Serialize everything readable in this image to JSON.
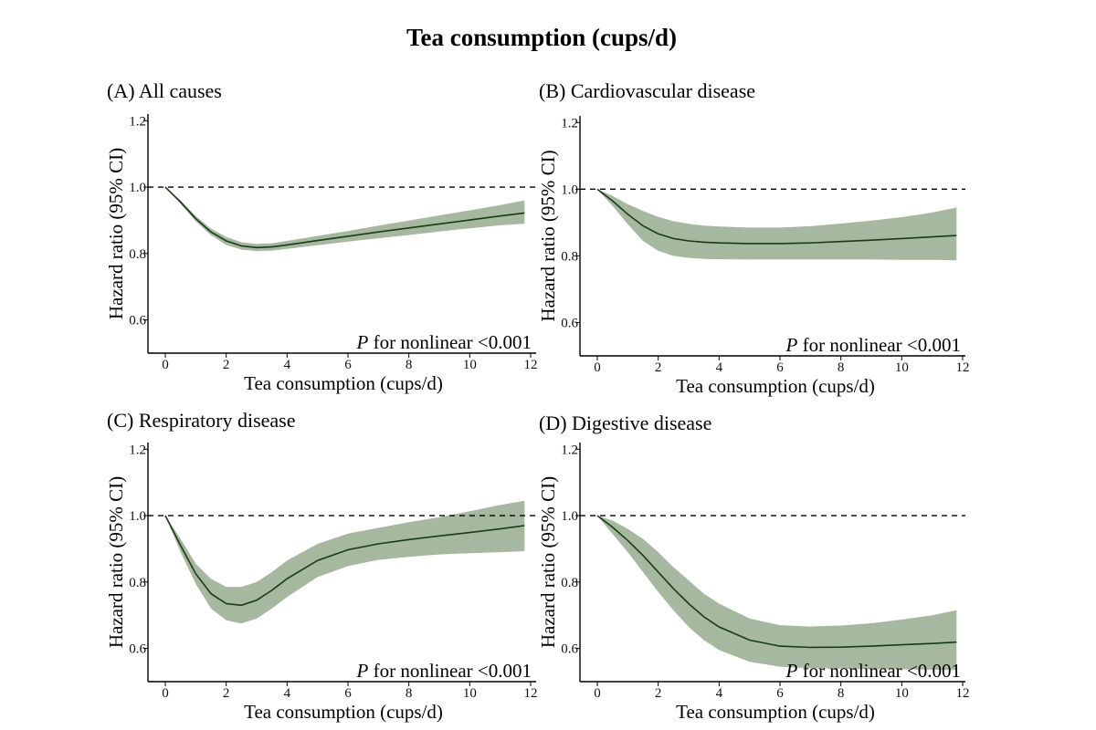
{
  "figure_title": "Tea consumption (cups/d)",
  "chart_data": [
    {
      "type": "line",
      "title": "(A) All causes",
      "xlabel": "Tea consumption (cups/d)",
      "ylabel": "Hazard ratio (95% CI)",
      "xlim": [
        0,
        12
      ],
      "ylim": [
        0.5,
        1.22
      ],
      "xticks": [
        0,
        2,
        4,
        6,
        8,
        10,
        12
      ],
      "yticks": [
        0.6,
        0.8,
        1.0,
        1.2
      ],
      "xtick_labels": [
        "0",
        "2",
        "4",
        "6",
        "8",
        "10",
        "12"
      ],
      "ytick_labels": [
        "0.6",
        "0.8",
        "1.0",
        "1.2"
      ],
      "reference_line": 1.0,
      "annotation_italic": "P",
      "annotation_rest": " for nonlinear <0.001",
      "x": [
        0,
        0.5,
        1,
        1.5,
        2,
        2.5,
        3,
        3.5,
        4,
        5,
        6,
        7,
        8,
        9,
        10,
        11,
        11.8
      ],
      "y": [
        1.0,
        0.955,
        0.905,
        0.865,
        0.838,
        0.823,
        0.818,
        0.82,
        0.826,
        0.839,
        0.852,
        0.865,
        0.877,
        0.889,
        0.901,
        0.913,
        0.922
      ],
      "ci_lower": [
        1.0,
        0.95,
        0.897,
        0.855,
        0.826,
        0.812,
        0.807,
        0.809,
        0.814,
        0.825,
        0.836,
        0.846,
        0.856,
        0.866,
        0.876,
        0.885,
        0.89
      ],
      "ci_upper": [
        1.0,
        0.96,
        0.913,
        0.875,
        0.85,
        0.834,
        0.829,
        0.831,
        0.838,
        0.853,
        0.868,
        0.884,
        0.899,
        0.915,
        0.93,
        0.946,
        0.96
      ]
    },
    {
      "type": "line",
      "title": "(B) Cardiovascular disease",
      "xlabel": "Tea consumption (cups/d)",
      "ylabel": "Hazard ratio (95% CI)",
      "xlim": [
        0,
        12
      ],
      "ylim": [
        0.5,
        1.22
      ],
      "xticks": [
        0,
        2,
        4,
        6,
        8,
        10,
        12
      ],
      "yticks": [
        0.6,
        0.8,
        1.0,
        1.2
      ],
      "xtick_labels": [
        "0",
        "2",
        "4",
        "6",
        "8",
        "10",
        "12"
      ],
      "ytick_labels": [
        "0.6",
        "0.8",
        "1.0",
        "1.2"
      ],
      "reference_line": 1.0,
      "annotation_italic": "P",
      "annotation_rest": " for nonlinear <0.001",
      "x": [
        0,
        0.5,
        1,
        1.5,
        2,
        2.5,
        3,
        3.5,
        4,
        5,
        6,
        7,
        8,
        9,
        10,
        11,
        11.8
      ],
      "y": [
        1.0,
        0.965,
        0.925,
        0.89,
        0.866,
        0.852,
        0.845,
        0.841,
        0.839,
        0.837,
        0.837,
        0.839,
        0.843,
        0.847,
        0.852,
        0.857,
        0.861
      ],
      "ci_lower": [
        1.0,
        0.95,
        0.895,
        0.845,
        0.815,
        0.8,
        0.794,
        0.791,
        0.79,
        0.789,
        0.789,
        0.789,
        0.789,
        0.789,
        0.788,
        0.788,
        0.787
      ],
      "ci_upper": [
        1.0,
        0.98,
        0.955,
        0.935,
        0.917,
        0.904,
        0.896,
        0.891,
        0.888,
        0.885,
        0.885,
        0.889,
        0.897,
        0.906,
        0.916,
        0.93,
        0.945
      ]
    },
    {
      "type": "line",
      "title": "(C) Respiratory disease",
      "xlabel": "Tea consumption (cups/d)",
      "ylabel": "Hazard ratio (95% CI)",
      "xlim": [
        0,
        12
      ],
      "ylim": [
        0.5,
        1.22
      ],
      "xticks": [
        0,
        2,
        4,
        6,
        8,
        10,
        12
      ],
      "yticks": [
        0.6,
        0.8,
        1.0,
        1.2
      ],
      "xtick_labels": [
        "0",
        "2",
        "4",
        "6",
        "8",
        "10",
        "12"
      ],
      "ytick_labels": [
        "0.6",
        "0.8",
        "1.0",
        "1.2"
      ],
      "reference_line": 1.0,
      "annotation_italic": "P",
      "annotation_rest": " for nonlinear <0.001",
      "x": [
        0,
        0.5,
        1,
        1.5,
        2,
        2.5,
        3,
        3.5,
        4,
        5,
        6,
        7,
        8,
        9,
        10,
        11,
        11.8
      ],
      "y": [
        1.0,
        0.91,
        0.825,
        0.765,
        0.735,
        0.73,
        0.745,
        0.775,
        0.81,
        0.865,
        0.897,
        0.915,
        0.928,
        0.939,
        0.949,
        0.96,
        0.97
      ],
      "ci_lower": [
        1.0,
        0.89,
        0.795,
        0.72,
        0.685,
        0.675,
        0.69,
        0.72,
        0.755,
        0.815,
        0.848,
        0.867,
        0.876,
        0.883,
        0.887,
        0.89,
        0.893
      ],
      "ci_upper": [
        1.0,
        0.93,
        0.855,
        0.81,
        0.785,
        0.785,
        0.8,
        0.83,
        0.865,
        0.915,
        0.946,
        0.963,
        0.98,
        0.995,
        1.013,
        1.032,
        1.045
      ]
    },
    {
      "type": "line",
      "title": "(D) Digestive disease",
      "xlabel": "Tea consumption (cups/d)",
      "ylabel": "Hazard ratio (95% CI)",
      "xlim": [
        0,
        12
      ],
      "ylim": [
        0.5,
        1.22
      ],
      "xticks": [
        0,
        2,
        4,
        6,
        8,
        10,
        12
      ],
      "yticks": [
        0.6,
        0.8,
        1.0,
        1.2
      ],
      "xtick_labels": [
        "0",
        "2",
        "4",
        "6",
        "8",
        "10",
        "12"
      ],
      "ytick_labels": [
        "0.6",
        "0.8",
        "1.0",
        "1.2"
      ],
      "reference_line": 1.0,
      "annotation_italic": "P",
      "annotation_rest": " for nonlinear <0.001",
      "x": [
        0,
        0.5,
        1,
        1.5,
        2,
        2.5,
        3,
        3.5,
        4,
        5,
        6,
        7,
        8,
        9,
        10,
        11,
        11.8
      ],
      "y": [
        1.0,
        0.965,
        0.925,
        0.88,
        0.83,
        0.78,
        0.735,
        0.695,
        0.665,
        0.625,
        0.607,
        0.603,
        0.604,
        0.607,
        0.611,
        0.615,
        0.619
      ],
      "ci_lower": [
        1.0,
        0.945,
        0.89,
        0.83,
        0.77,
        0.715,
        0.665,
        0.625,
        0.595,
        0.56,
        0.545,
        0.54,
        0.539,
        0.538,
        0.537,
        0.536,
        0.535
      ],
      "ci_upper": [
        1.0,
        0.985,
        0.96,
        0.93,
        0.89,
        0.845,
        0.805,
        0.765,
        0.735,
        0.69,
        0.67,
        0.666,
        0.669,
        0.676,
        0.687,
        0.7,
        0.715
      ]
    }
  ]
}
